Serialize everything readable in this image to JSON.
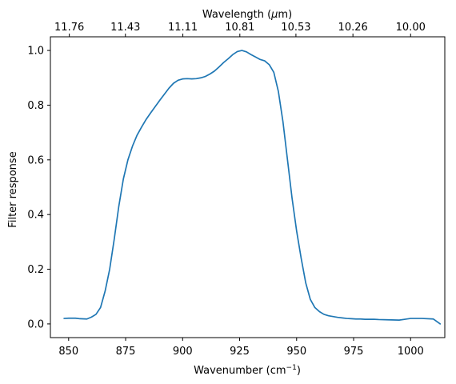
{
  "chart_data": {
    "type": "line",
    "xlabel": "Wavenumber (cm",
    "xlabel_sup": "−1",
    "xlabel_suffix": ")",
    "ylabel": "Filter response",
    "top_xlabel": "Wavelength (",
    "top_xlabel_mu": "μ",
    "top_xlabel_suffix": "m)",
    "xlim": [
      842,
      1015
    ],
    "ylim": [
      -0.05,
      1.05
    ],
    "x_ticks": [
      850,
      875,
      900,
      925,
      950,
      975,
      1000
    ],
    "y_ticks": [
      0.0,
      0.2,
      0.4,
      0.6,
      0.8,
      1.0
    ],
    "top_ticks": [
      {
        "label": "11.76",
        "wavenumber": 850.3
      },
      {
        "label": "11.43",
        "wavenumber": 874.9
      },
      {
        "label": "11.11",
        "wavenumber": 900.1
      },
      {
        "label": "10.81",
        "wavenumber": 925.1
      },
      {
        "label": "10.53",
        "wavenumber": 949.7
      },
      {
        "label": "10.26",
        "wavenumber": 974.7
      },
      {
        "label": "10.00",
        "wavenumber": 1000.0
      }
    ],
    "grid": false,
    "series": [
      {
        "color": "#1f77b4",
        "x": [
          848,
          850,
          853,
          855,
          858,
          860,
          862,
          864,
          866,
          868,
          870,
          872,
          874,
          876,
          878,
          880,
          882,
          884,
          886,
          888,
          890,
          892,
          894,
          896,
          898,
          900,
          902,
          904,
          906,
          908,
          910,
          912,
          914,
          916,
          918,
          920,
          922,
          924,
          926,
          928,
          930,
          932,
          934,
          936,
          938,
          940,
          942,
          944,
          946,
          948,
          950,
          952,
          954,
          956,
          958,
          960,
          962,
          964,
          966,
          968,
          970,
          972,
          974,
          976,
          978,
          980,
          982,
          984,
          986,
          990,
          995,
          1000,
          1005,
          1010,
          1013
        ],
        "y": [
          0.02,
          0.021,
          0.021,
          0.019,
          0.018,
          0.025,
          0.035,
          0.06,
          0.12,
          0.2,
          0.31,
          0.43,
          0.53,
          0.6,
          0.65,
          0.69,
          0.72,
          0.748,
          0.772,
          0.795,
          0.818,
          0.84,
          0.862,
          0.88,
          0.891,
          0.896,
          0.897,
          0.896,
          0.897,
          0.9,
          0.905,
          0.914,
          0.925,
          0.94,
          0.956,
          0.97,
          0.985,
          0.996,
          1.0,
          0.995,
          0.985,
          0.976,
          0.967,
          0.962,
          0.948,
          0.92,
          0.85,
          0.74,
          0.6,
          0.46,
          0.34,
          0.24,
          0.15,
          0.09,
          0.06,
          0.045,
          0.035,
          0.03,
          0.027,
          0.024,
          0.022,
          0.02,
          0.019,
          0.018,
          0.018,
          0.017,
          0.017,
          0.017,
          0.016,
          0.015,
          0.014,
          0.02,
          0.02,
          0.018,
          0.0
        ]
      }
    ]
  }
}
